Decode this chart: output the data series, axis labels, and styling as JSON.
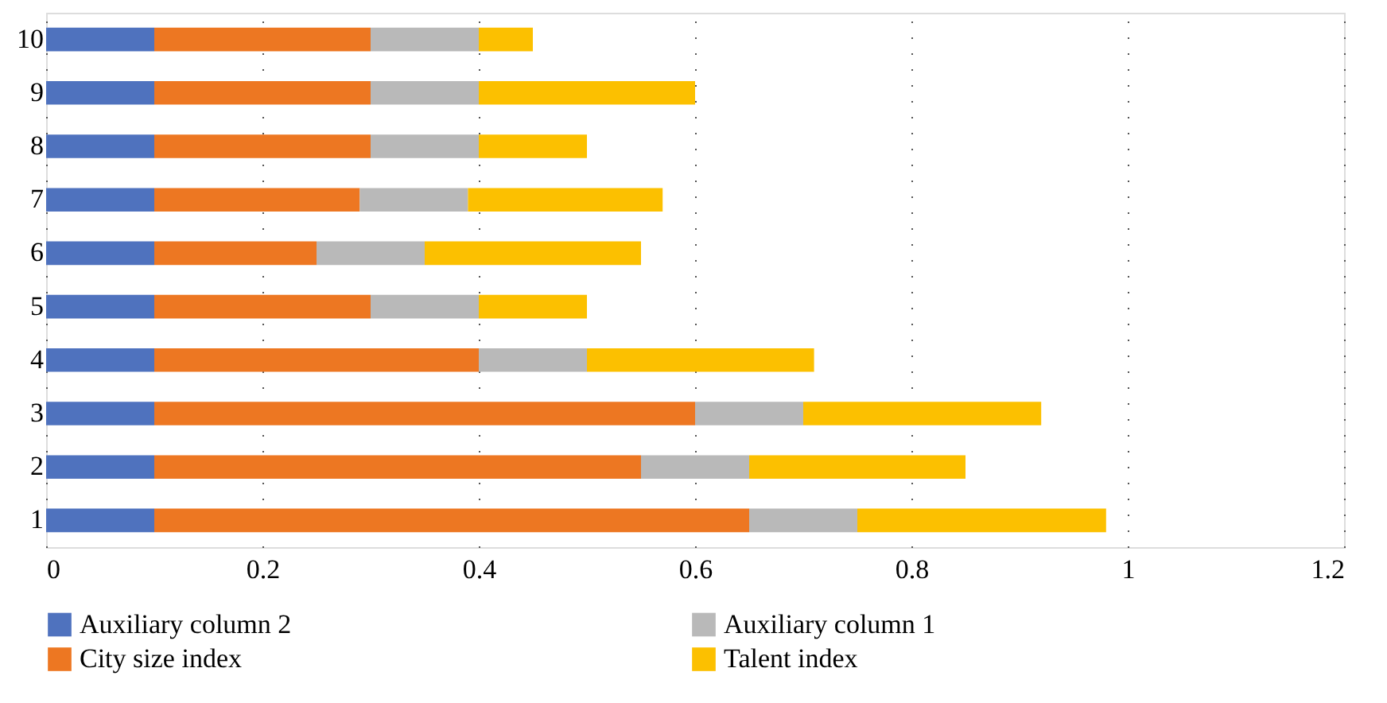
{
  "chart_data": {
    "type": "bar",
    "orientation": "horizontal",
    "stacked": true,
    "categories": [
      "10",
      "9",
      "8",
      "7",
      "6",
      "5",
      "4",
      "3",
      "2",
      "1"
    ],
    "series": [
      {
        "name": "Auxiliary column 2",
        "color": "#4f72be",
        "values": [
          0.1,
          0.1,
          0.1,
          0.1,
          0.1,
          0.1,
          0.1,
          0.1,
          0.1,
          0.1
        ]
      },
      {
        "name": "City size index",
        "color": "#ed7722",
        "values": [
          0.2,
          0.2,
          0.2,
          0.19,
          0.15,
          0.2,
          0.3,
          0.5,
          0.45,
          0.55
        ]
      },
      {
        "name": "Auxiliary column 1",
        "color": "#b9b9b9",
        "values": [
          0.1,
          0.1,
          0.1,
          0.1,
          0.1,
          0.1,
          0.1,
          0.1,
          0.1,
          0.1
        ]
      },
      {
        "name": "Talent index",
        "color": "#fcc000",
        "values": [
          0.05,
          0.2,
          0.1,
          0.18,
          0.2,
          0.1,
          0.21,
          0.22,
          0.2,
          0.23
        ]
      }
    ],
    "xlim": [
      0,
      1.2
    ],
    "xticks": [
      0,
      0.2,
      0.4,
      0.6,
      0.8,
      1,
      1.2
    ],
    "grid": "x",
    "legend": "bottom"
  }
}
